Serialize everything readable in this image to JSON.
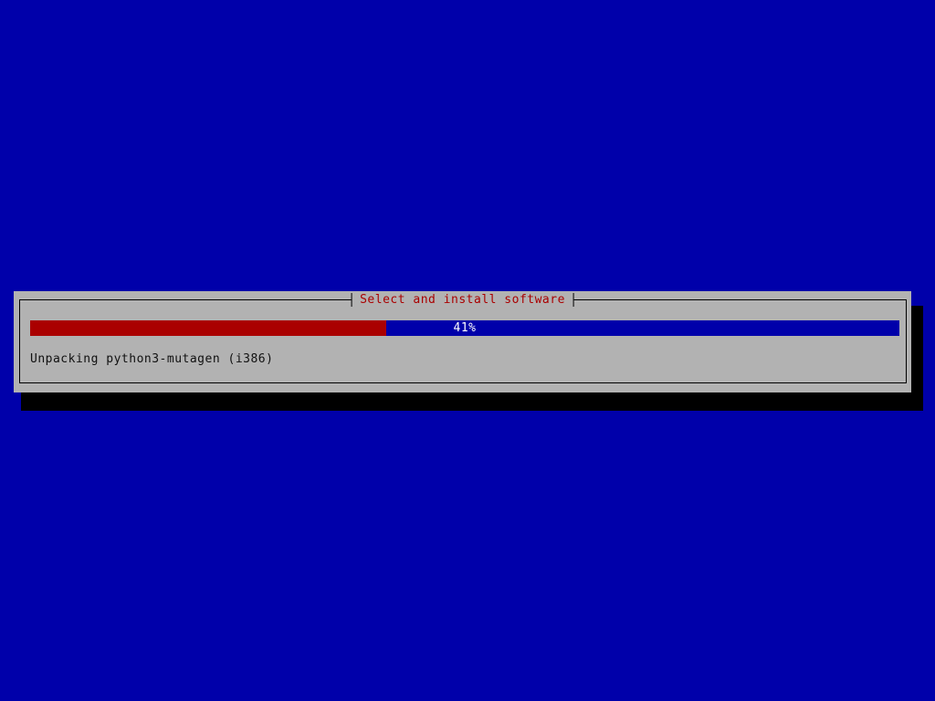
{
  "screen": {
    "background_color": "#0000aa"
  },
  "dialog": {
    "title": "Select and install software",
    "title_color": "#aa0000",
    "background_color": "#b2b2b2",
    "border_color": "#000000",
    "shadow_color": "#000000",
    "progress": {
      "percent": 41,
      "label": "41%",
      "fill_width": "41%",
      "fill_color": "#aa0000",
      "track_color": "#0000aa",
      "label_color": "#ffffff"
    },
    "status_text": "Unpacking python3-mutagen (i386)"
  }
}
